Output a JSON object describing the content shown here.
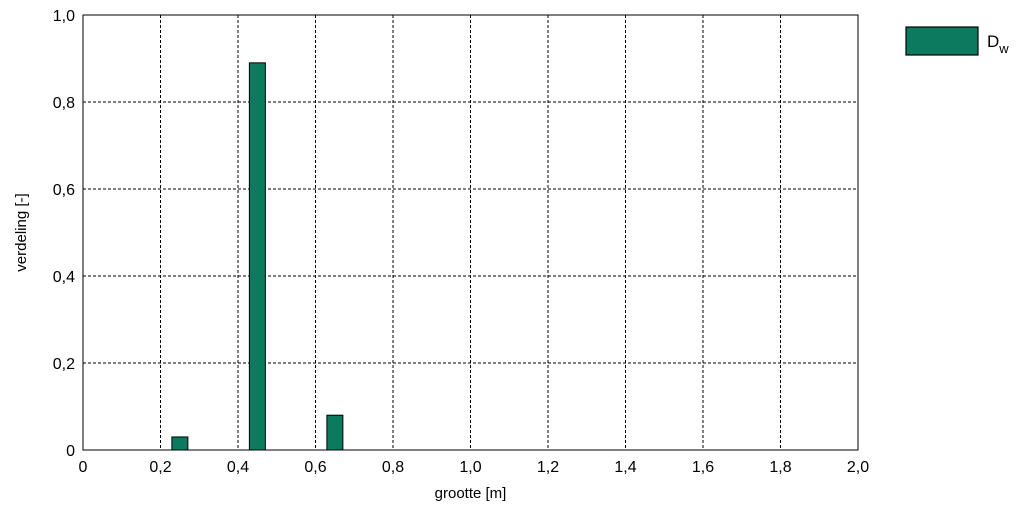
{
  "chart_data": {
    "type": "bar",
    "title": "",
    "xlabel": "grootte [m]",
    "ylabel": "verdeling [-]",
    "xlim": [
      0,
      2.0
    ],
    "ylim": [
      0,
      1.0
    ],
    "grid": true,
    "legend_position": "top-right",
    "x_ticks": [
      "0",
      "0,2",
      "0,4",
      "0,6",
      "0,8",
      "1,0",
      "1,2",
      "1,4",
      "1,6",
      "1,8",
      "2,0"
    ],
    "y_ticks": [
      "0",
      "0,2",
      "0,4",
      "0,6",
      "0,8",
      "1,0"
    ],
    "series": [
      {
        "name": "Dw",
        "name_main": "D",
        "name_sub": "w",
        "color": "#0b7a5e",
        "points": [
          {
            "x": 0.25,
            "y": 0.03
          },
          {
            "x": 0.45,
            "y": 0.89
          },
          {
            "x": 0.65,
            "y": 0.08
          }
        ]
      }
    ]
  }
}
